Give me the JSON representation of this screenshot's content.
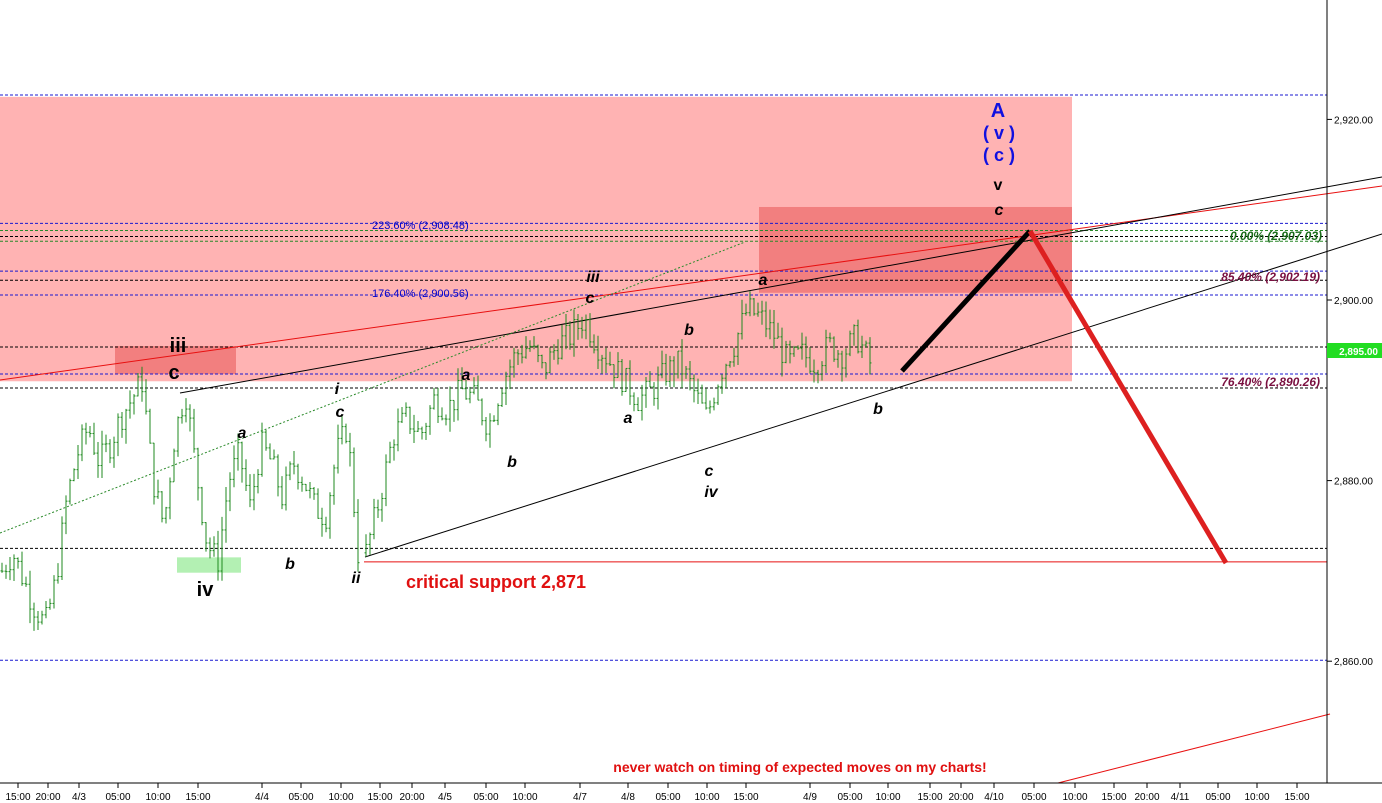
{
  "chart_data": {
    "type": "candlestick",
    "instrument": "",
    "ylim": [
      2848,
      2930
    ],
    "y_ticks": [
      "2,920.00",
      "2,900.00",
      "2,880.00",
      "2,860.00"
    ],
    "y_tick_values": [
      2920,
      2900,
      2880,
      2860
    ],
    "last_price_label": "2,895.00",
    "last_price": 2895.0,
    "x_ticks": [
      "15:00",
      "20:00",
      "4/3",
      "05:00",
      "10:00",
      "15:00",
      "4/4",
      "05:00",
      "10:00",
      "15:00",
      "20:00",
      "4/5",
      "05:00",
      "10:00",
      "4/7",
      "4/8",
      "05:00",
      "10:00",
      "15:00",
      "4/9",
      "05:00",
      "10:00",
      "15:00",
      "20:00",
      "4/10",
      "05:00",
      "10:00",
      "15:00",
      "20:00",
      "4/11",
      "05:00",
      "10:00",
      "15:00"
    ],
    "price_path": [
      [
        2870,
        2872,
        2869,
        2866,
        2864,
        2869,
        2878,
        2883,
        2886,
        2882,
        2884,
        2887,
        2889,
        2891,
        2880,
        2875,
        2885,
        2890,
        2881,
        2873,
        2871,
        2880,
        2883,
        2877,
        2884,
        2882,
        2878,
        2882,
        2880,
        2877,
        2876,
        2883,
        2886,
        2872
      ],
      [
        2872,
        2878,
        2885,
        2887,
        2885,
        2889,
        2888,
        2890,
        2889,
        2886,
        2891,
        2894,
        2895,
        2892,
        2895,
        2896,
        2898,
        2895,
        2893,
        2891,
        2889,
        2890,
        2892,
        2893,
        2890,
        2887,
        2892,
        2895,
        2899,
        2898,
        2896,
        2893,
        2894,
        2893,
        2895,
        2894,
        2896,
        2893
      ]
    ],
    "shaded_zones": [
      {
        "from": 2891,
        "to": 2922.5,
        "color": "#ffb3b3"
      },
      {
        "from": 2900.8,
        "to": 2910.3,
        "color": "#f27f7f"
      },
      {
        "from": 2891.8,
        "to": 2894.9,
        "color": "#f27f7f"
      },
      {
        "from": 2869.8,
        "to": 2871.5,
        "color": "#b3f0b3"
      }
    ],
    "horizontal_levels": [
      {
        "value": 2922.7,
        "style": "blue-dash"
      },
      {
        "value": 2908.48,
        "style": "blue-dash"
      },
      {
        "value": 2907.7,
        "style": "green-dash"
      },
      {
        "value": 2907.03,
        "style": "black-dash"
      },
      {
        "value": 2906.5,
        "style": "green-dash"
      },
      {
        "value": 2903.2,
        "style": "blue-dash"
      },
      {
        "value": 2902.19,
        "style": "black-dash"
      },
      {
        "value": 2900.56,
        "style": "blue-dash"
      },
      {
        "value": 2894.8,
        "style": "black-dash"
      },
      {
        "value": 2891.8,
        "style": "blue-dash"
      },
      {
        "value": 2890.26,
        "style": "black-dash"
      },
      {
        "value": 2872.5,
        "style": "black-dash"
      },
      {
        "value": 2871.0,
        "style": "red-solid"
      },
      {
        "value": 2860.1,
        "style": "blue-dash"
      }
    ],
    "fib_labels": [
      {
        "text": "223.60% (2,908.48)",
        "color": "#0000cc"
      },
      {
        "text": "176.40% (2,900.56)",
        "color": "#0000cc"
      },
      {
        "text": "0.00% (2,907.03)",
        "color": "#1a6b1a"
      },
      {
        "text": "85.40% (2,902.19)",
        "color": "#7a1040"
      },
      {
        "text": "76.40% (2,890.26)",
        "color": "#7a1040"
      }
    ],
    "wave_labels": {
      "big_iii": "iii",
      "big_c": "c",
      "big_iv": "iv",
      "a1": "a",
      "b1": "b",
      "i": "i",
      "c_i": "c",
      "ii": "ii",
      "a2": "a",
      "b2": "b",
      "iii_small": "iii",
      "c_iii": "c",
      "a3": "a",
      "b3": "b",
      "c_iv": "c",
      "iv_small": "iv",
      "a4": "a",
      "b4": "b",
      "A": "A",
      "v_paren": "( v )",
      "c_paren": "( c )",
      "v_small": "v",
      "c_top": "c"
    },
    "annotations": {
      "support": "critical  support 2,871",
      "disclaimer": "never watch on timing of expected moves on my charts!"
    },
    "projection": {
      "up_leg": [
        2888.5,
        2909.0
      ],
      "down_leg": [
        2909.0,
        2871.0
      ]
    }
  }
}
